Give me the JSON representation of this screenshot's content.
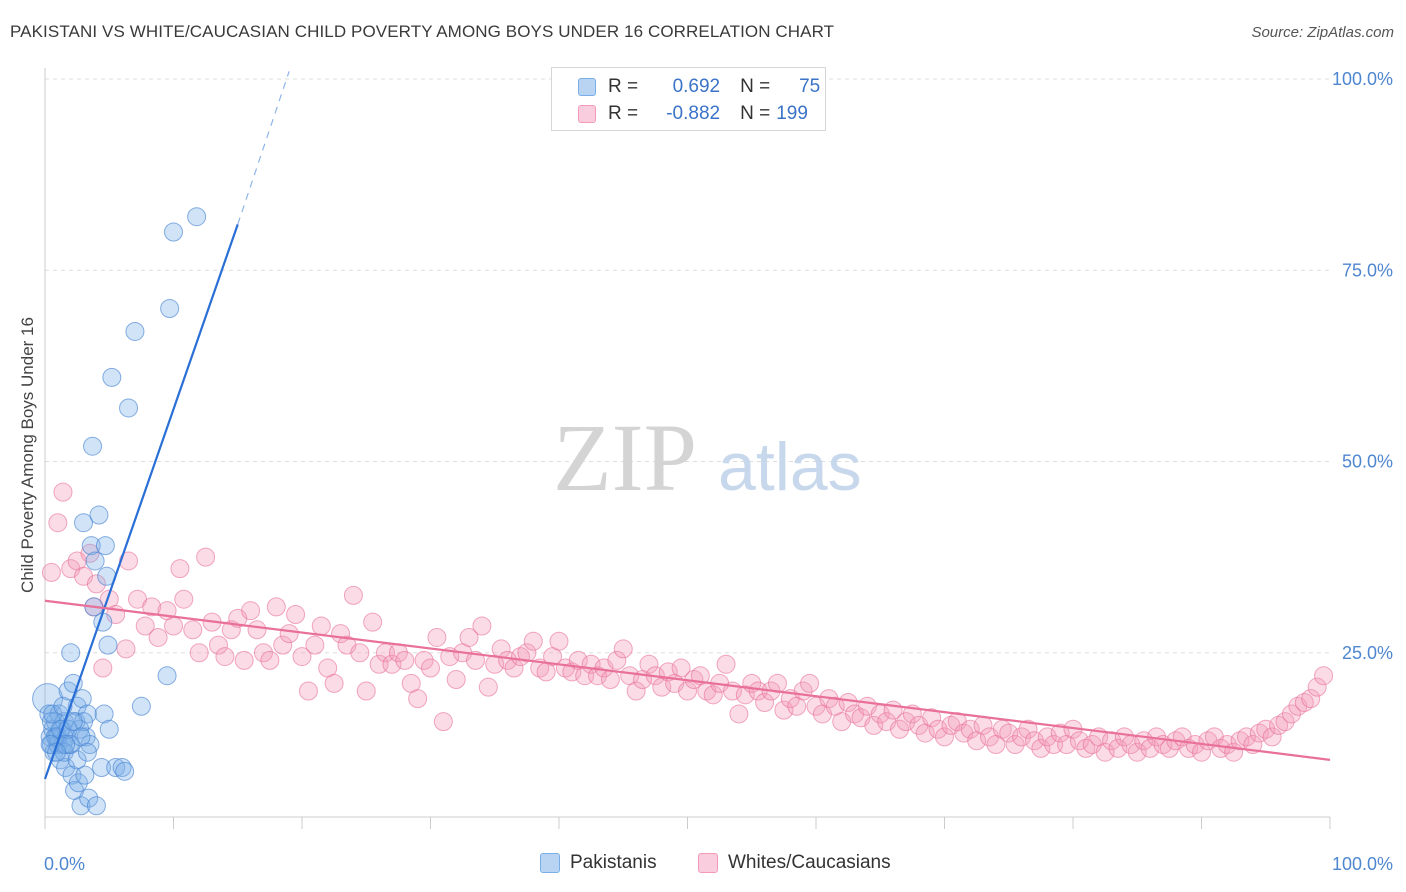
{
  "title": "PAKISTANI VS WHITE/CAUCASIAN CHILD POVERTY AMONG BOYS UNDER 16 CORRELATION CHART",
  "source": "Source: ZipAtlas.com",
  "colors": {
    "blue": "#7aaee8",
    "blue_line": "#2a6fd6",
    "pink": "#f49ab8",
    "pink_line": "#e8709a",
    "tick_text": "#4f86d0"
  },
  "legend_top": {
    "rows": [
      {
        "r_label": "R =",
        "r_value": "0.692",
        "n_label": "N =",
        "n_value": "75"
      },
      {
        "r_label": "R =",
        "r_value": "-0.882",
        "n_label": "N =",
        "n_value": "199"
      }
    ]
  },
  "legend_bottom": {
    "items": [
      "Pakistanis",
      "Whites/Caucasians"
    ]
  },
  "chart_data": {
    "type": "scatter",
    "xlabel": "",
    "ylabel": "Child Poverty Among Boys Under 16",
    "xlim": [
      0,
      100
    ],
    "ylim": [
      0,
      100
    ],
    "x_tick_labels": [
      "0.0%",
      "100.0%"
    ],
    "y_tick_labels": [
      "25.0%",
      "50.0%",
      "75.0%",
      "100.0%"
    ],
    "y_ticks": [
      25,
      50,
      75,
      100
    ],
    "grid": true,
    "watermark": {
      "zip": "ZIP",
      "atlas": "atlas"
    },
    "series": [
      {
        "name": "Pakistanis",
        "trend": {
          "x1": 0,
          "y1": 8.5,
          "x2": 15,
          "y2": 81,
          "dash_to_x": 19,
          "dash_to_y": 101
        },
        "points": [
          [
            0.2,
            19
          ],
          [
            0.3,
            17
          ],
          [
            0.4,
            14
          ],
          [
            0.5,
            13
          ],
          [
            0.6,
            15
          ],
          [
            0.7,
            12
          ],
          [
            0.8,
            16
          ],
          [
            0.9,
            14
          ],
          [
            1.0,
            13
          ],
          [
            1.1,
            17
          ],
          [
            1.2,
            11
          ],
          [
            1.3,
            15
          ],
          [
            1.4,
            13
          ],
          [
            1.5,
            16
          ],
          [
            1.6,
            10
          ],
          [
            1.7,
            14
          ],
          [
            1.8,
            20
          ],
          [
            1.9,
            13
          ],
          [
            2.0,
            25
          ],
          [
            2.1,
            9
          ],
          [
            2.2,
            21
          ],
          [
            2.3,
            7
          ],
          [
            2.4,
            16
          ],
          [
            2.5,
            18
          ],
          [
            2.6,
            8
          ],
          [
            2.7,
            15
          ],
          [
            2.8,
            5
          ],
          [
            2.9,
            19
          ],
          [
            3.0,
            42
          ],
          [
            3.1,
            9
          ],
          [
            3.2,
            14
          ],
          [
            3.3,
            17
          ],
          [
            3.4,
            6
          ],
          [
            3.5,
            13
          ],
          [
            3.6,
            39
          ],
          [
            3.7,
            52
          ],
          [
            3.8,
            31
          ],
          [
            3.9,
            37
          ],
          [
            4.0,
            5
          ],
          [
            4.2,
            43
          ],
          [
            4.4,
            10
          ],
          [
            4.5,
            29
          ],
          [
            4.6,
            17
          ],
          [
            4.7,
            39
          ],
          [
            4.8,
            35
          ],
          [
            4.9,
            26
          ],
          [
            5.0,
            15
          ],
          [
            5.5,
            10
          ],
          [
            6.0,
            10
          ],
          [
            6.2,
            9.5
          ],
          [
            5.2,
            61
          ],
          [
            6.5,
            57
          ],
          [
            7.0,
            67
          ],
          [
            7.5,
            18
          ],
          [
            9.5,
            22
          ],
          [
            9.7,
            70
          ],
          [
            10.0,
            80
          ],
          [
            11.8,
            82
          ],
          [
            0.5,
            16
          ],
          [
            1.0,
            14
          ],
          [
            1.5,
            12
          ],
          [
            2.0,
            13
          ],
          [
            0.8,
            14
          ],
          [
            1.2,
            15
          ],
          [
            2.5,
            11
          ],
          [
            3.0,
            16
          ],
          [
            0.4,
            13
          ],
          [
            1.8,
            15
          ],
          [
            2.2,
            16
          ],
          [
            1.6,
            13
          ],
          [
            0.6,
            17
          ],
          [
            2.8,
            14
          ],
          [
            1.4,
            18
          ],
          [
            3.3,
            12
          ],
          [
            0.9,
            12
          ]
        ]
      },
      {
        "name": "Whites/Caucasians",
        "trend": {
          "x1": 0,
          "y1": 31.8,
          "x2": 100,
          "y2": 11
        },
        "points": [
          [
            0.5,
            35.5
          ],
          [
            1.0,
            42
          ],
          [
            1.4,
            46
          ],
          [
            2.0,
            36
          ],
          [
            2.5,
            37
          ],
          [
            3.0,
            35
          ],
          [
            3.5,
            38
          ],
          [
            3.8,
            31
          ],
          [
            4.0,
            34
          ],
          [
            4.5,
            23
          ],
          [
            5.0,
            32
          ],
          [
            5.5,
            30
          ],
          [
            6.3,
            25.5
          ],
          [
            6.5,
            37
          ],
          [
            7.2,
            32
          ],
          [
            7.8,
            28.5
          ],
          [
            8.3,
            31
          ],
          [
            8.8,
            27
          ],
          [
            9.5,
            30.5
          ],
          [
            10.0,
            28.5
          ],
          [
            10.5,
            36
          ],
          [
            10.8,
            32
          ],
          [
            11.5,
            28
          ],
          [
            12.0,
            25
          ],
          [
            12.5,
            37.5
          ],
          [
            13.0,
            29
          ],
          [
            13.5,
            26
          ],
          [
            14.0,
            24.5
          ],
          [
            14.5,
            28
          ],
          [
            15.0,
            29.5
          ],
          [
            15.5,
            24
          ],
          [
            16.0,
            30.5
          ],
          [
            16.5,
            28
          ],
          [
            17.0,
            25
          ],
          [
            17.5,
            24
          ],
          [
            18.0,
            31
          ],
          [
            18.5,
            26
          ],
          [
            19.0,
            27.5
          ],
          [
            19.5,
            30
          ],
          [
            20.0,
            24.5
          ],
          [
            20.5,
            20
          ],
          [
            21.0,
            26
          ],
          [
            21.5,
            28.5
          ],
          [
            22.0,
            23
          ],
          [
            22.5,
            21
          ],
          [
            23.0,
            27.5
          ],
          [
            23.5,
            26
          ],
          [
            24.0,
            32.5
          ],
          [
            24.5,
            25
          ],
          [
            25.0,
            20
          ],
          [
            25.5,
            29
          ],
          [
            26.0,
            23.5
          ],
          [
            26.5,
            25
          ],
          [
            27.0,
            23.5
          ],
          [
            27.5,
            25
          ],
          [
            28.0,
            24
          ],
          [
            28.5,
            21
          ],
          [
            29.0,
            19
          ],
          [
            29.5,
            24
          ],
          [
            30.0,
            23
          ],
          [
            30.5,
            27
          ],
          [
            31.0,
            16
          ],
          [
            31.5,
            24.5
          ],
          [
            32.0,
            21.5
          ],
          [
            32.5,
            25
          ],
          [
            33.0,
            27
          ],
          [
            33.5,
            24
          ],
          [
            34.0,
            28.5
          ],
          [
            34.5,
            20.5
          ],
          [
            35.0,
            23.5
          ],
          [
            35.5,
            25.5
          ],
          [
            36.0,
            24
          ],
          [
            36.5,
            23
          ],
          [
            37.0,
            24.5
          ],
          [
            37.5,
            25
          ],
          [
            38.0,
            26.5
          ],
          [
            38.5,
            23
          ],
          [
            39.0,
            22.5
          ],
          [
            39.5,
            24.5
          ],
          [
            40.0,
            26.5
          ],
          [
            40.5,
            23
          ],
          [
            41.0,
            22.5
          ],
          [
            41.5,
            24
          ],
          [
            42.0,
            22
          ],
          [
            42.5,
            23.5
          ],
          [
            43.0,
            22
          ],
          [
            43.5,
            23
          ],
          [
            44.0,
            21.5
          ],
          [
            44.5,
            24
          ],
          [
            45.0,
            25.5
          ],
          [
            45.5,
            22
          ],
          [
            46.0,
            20
          ],
          [
            46.5,
            21.5
          ],
          [
            47.0,
            23.5
          ],
          [
            47.5,
            22
          ],
          [
            48.0,
            20.5
          ],
          [
            48.5,
            22.5
          ],
          [
            49.0,
            21
          ],
          [
            49.5,
            23
          ],
          [
            50.0,
            20
          ],
          [
            50.5,
            21.5
          ],
          [
            51.0,
            22
          ],
          [
            51.5,
            20
          ],
          [
            52.0,
            19.5
          ],
          [
            52.5,
            21
          ],
          [
            53.0,
            23.5
          ],
          [
            53.5,
            20
          ],
          [
            54.0,
            17
          ],
          [
            54.5,
            19.5
          ],
          [
            55.0,
            21
          ],
          [
            55.5,
            20
          ],
          [
            56.0,
            18.5
          ],
          [
            56.5,
            20
          ],
          [
            57.0,
            21
          ],
          [
            57.5,
            17.5
          ],
          [
            58.0,
            19
          ],
          [
            58.5,
            18
          ],
          [
            59.0,
            20
          ],
          [
            59.5,
            21
          ],
          [
            60.0,
            18
          ],
          [
            60.5,
            17
          ],
          [
            61.0,
            19
          ],
          [
            61.5,
            18
          ],
          [
            62.0,
            16
          ],
          [
            62.5,
            18.5
          ],
          [
            63.0,
            17
          ],
          [
            63.5,
            16.5
          ],
          [
            64.0,
            18
          ],
          [
            64.5,
            15.5
          ],
          [
            65.0,
            17
          ],
          [
            65.5,
            16
          ],
          [
            66.0,
            17.5
          ],
          [
            66.5,
            15
          ],
          [
            67.0,
            16
          ],
          [
            67.5,
            17
          ],
          [
            68.0,
            15.5
          ],
          [
            68.5,
            14.5
          ],
          [
            69.0,
            16.5
          ],
          [
            69.5,
            15
          ],
          [
            70.0,
            14
          ],
          [
            70.5,
            15.5
          ],
          [
            71.0,
            16
          ],
          [
            71.5,
            14.5
          ],
          [
            72.0,
            15
          ],
          [
            72.5,
            13.5
          ],
          [
            73.0,
            15.5
          ],
          [
            73.5,
            14
          ],
          [
            74.0,
            13
          ],
          [
            74.5,
            15
          ],
          [
            75.0,
            14.5
          ],
          [
            75.5,
            13
          ],
          [
            76.0,
            14
          ],
          [
            76.5,
            15
          ],
          [
            77.0,
            13.5
          ],
          [
            77.5,
            12.5
          ],
          [
            78.0,
            14
          ],
          [
            78.5,
            13
          ],
          [
            79.0,
            14.5
          ],
          [
            79.5,
            13
          ],
          [
            80.0,
            15
          ],
          [
            80.5,
            13.5
          ],
          [
            81.0,
            12.5
          ],
          [
            81.5,
            13
          ],
          [
            82.0,
            14
          ],
          [
            82.5,
            12
          ],
          [
            83.0,
            13.5
          ],
          [
            83.5,
            12.5
          ],
          [
            84.0,
            14
          ],
          [
            84.5,
            13
          ],
          [
            85.0,
            12
          ],
          [
            85.5,
            13.5
          ],
          [
            86.0,
            12.5
          ],
          [
            86.5,
            14
          ],
          [
            87.0,
            13
          ],
          [
            87.5,
            12.5
          ],
          [
            88.0,
            13.5
          ],
          [
            88.5,
            14
          ],
          [
            89.0,
            12.5
          ],
          [
            89.5,
            13
          ],
          [
            90.0,
            12
          ],
          [
            90.5,
            13.5
          ],
          [
            91.0,
            14
          ],
          [
            91.5,
            12.5
          ],
          [
            92.0,
            13
          ],
          [
            92.5,
            12
          ],
          [
            93.0,
            13.5
          ],
          [
            93.5,
            14
          ],
          [
            94.0,
            13
          ],
          [
            94.5,
            14.5
          ],
          [
            95.0,
            15
          ],
          [
            95.5,
            14
          ],
          [
            96.0,
            15.5
          ],
          [
            96.5,
            16
          ],
          [
            97.0,
            17
          ],
          [
            97.5,
            18
          ],
          [
            98.0,
            18.5
          ],
          [
            98.5,
            19
          ],
          [
            99.0,
            20.5
          ],
          [
            99.5,
            22
          ]
        ]
      }
    ]
  }
}
